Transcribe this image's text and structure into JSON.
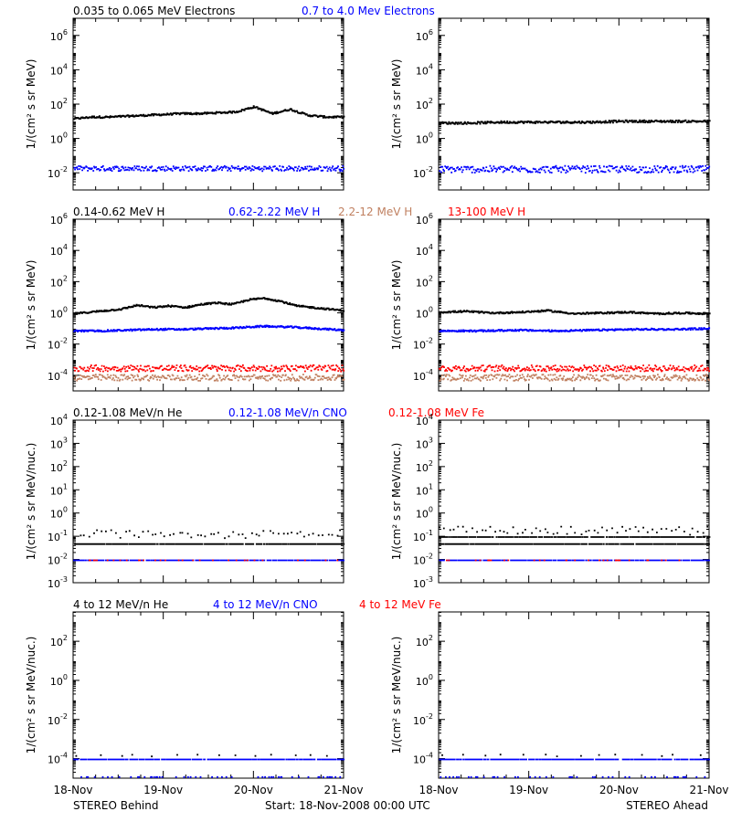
{
  "chart_data": {
    "type": "scatter",
    "x_ticks": [
      "18-Nov",
      "19-Nov",
      "20-Nov",
      "21-Nov"
    ],
    "xlim_days": [
      0,
      3
    ],
    "footer": {
      "left": "STEREO Behind",
      "center": "Start: 18-Nov-2008 00:00 UTC",
      "right": "STEREO Ahead"
    },
    "rows": [
      {
        "ylabel": "1/(cm² s sr MeV)",
        "ylim_exp": [
          -3,
          7
        ],
        "y_ticks": [
          {
            "exp": -2,
            "label": "10",
            "sup": "-2"
          },
          {
            "exp": 0,
            "label": "10",
            "sup": "0"
          },
          {
            "exp": 2,
            "label": "10",
            "sup": "2"
          },
          {
            "exp": 4,
            "label": "10",
            "sup": "4"
          },
          {
            "exp": 6,
            "label": "10",
            "sup": "6"
          }
        ],
        "legend": [
          {
            "text": "0.035 to 0.065 MeV Electrons",
            "color": "#000000"
          },
          {
            "text": "0.7 to 4.0 Mev Electrons",
            "color": "#0000ff"
          }
        ],
        "behind": [
          {
            "color": "#000000",
            "style": "line",
            "level": [
              1.2,
              1.3,
              1.3,
              1.35,
              1.4,
              1.45,
              1.5,
              1.5,
              1.55,
              1.6,
              1.9,
              1.5,
              1.75,
              1.4,
              1.3,
              1.3
            ],
            "jitter": 0.05
          },
          {
            "color": "#0000ff",
            "style": "scatter",
            "level": [
              -1.7,
              -1.7,
              -1.7,
              -1.7,
              -1.7,
              -1.7,
              -1.7,
              -1.7
            ],
            "jitter": 0.15
          }
        ],
        "ahead": [
          {
            "color": "#000000",
            "style": "line",
            "level": [
              0.95,
              0.95,
              1.0,
              1.0,
              1.0,
              1.0,
              1.05,
              1.05,
              1.05,
              1.05
            ],
            "jitter": 0.06
          },
          {
            "color": "#0000ff",
            "style": "scatter",
            "level": [
              -1.75,
              -1.75,
              -1.75,
              -1.75,
              -1.75,
              -1.75,
              -1.75
            ],
            "jitter": 0.2
          }
        ]
      },
      {
        "ylabel": "1/(cm² s sr MeV)",
        "ylim_exp": [
          -5,
          6
        ],
        "y_ticks": [
          {
            "exp": -4,
            "label": "10",
            "sup": "-4"
          },
          {
            "exp": -2,
            "label": "10",
            "sup": "-2"
          },
          {
            "exp": 0,
            "label": "10",
            "sup": "0"
          },
          {
            "exp": 2,
            "label": "10",
            "sup": "2"
          },
          {
            "exp": 4,
            "label": "10",
            "sup": "4"
          },
          {
            "exp": 6,
            "label": "10",
            "sup": "6"
          }
        ],
        "legend": [
          {
            "text": "0.14-0.62 MeV H",
            "color": "#000000"
          },
          {
            "text": "0.62-2.22 MeV H",
            "color": "#0000ff"
          },
          {
            "text": "2.2-12 MeV H",
            "color": "#c08060"
          },
          {
            "text": "13-100 MeV H",
            "color": "#ff0000"
          }
        ],
        "behind": [
          {
            "color": "#000000",
            "style": "line",
            "level": [
              0.0,
              0.1,
              0.2,
              0.3,
              0.55,
              0.4,
              0.5,
              0.4,
              0.6,
              0.7,
              0.6,
              0.9,
              1.0,
              0.8,
              0.5,
              0.4,
              0.3,
              0.2
            ],
            "jitter": 0.05
          },
          {
            "color": "#0000ff",
            "style": "line",
            "level": [
              -1.1,
              -1.1,
              -1.05,
              -1.0,
              -1.0,
              -0.95,
              -0.9,
              -0.8,
              -0.85,
              -0.95,
              -1.05
            ],
            "jitter": 0.05
          },
          {
            "color": "#c08060",
            "style": "scatter",
            "level": [
              -4.1,
              -4.1,
              -4.1,
              -4.1,
              -4.1
            ],
            "jitter": 0.2
          },
          {
            "color": "#ff0000",
            "style": "scatter",
            "level": [
              -3.5,
              -3.5,
              -3.5,
              -3.5,
              -3.5
            ],
            "jitter": 0.2
          }
        ],
        "ahead": [
          {
            "color": "#000000",
            "style": "line",
            "level": [
              0.1,
              0.15,
              0.05,
              0.1,
              0.2,
              0.0,
              0.05,
              0.1,
              0.0,
              0.05,
              0.0
            ],
            "jitter": 0.05
          },
          {
            "color": "#0000ff",
            "style": "line",
            "level": [
              -1.1,
              -1.1,
              -1.05,
              -1.1,
              -1.05,
              -1.0,
              -1.0,
              -0.95
            ],
            "jitter": 0.05
          },
          {
            "color": "#c08060",
            "style": "scatter",
            "level": [
              -4.1,
              -4.1,
              -4.1,
              -4.1
            ],
            "jitter": 0.2
          },
          {
            "color": "#ff0000",
            "style": "scatter",
            "level": [
              -3.5,
              -3.5,
              -3.5,
              -3.5
            ],
            "jitter": 0.2
          }
        ]
      },
      {
        "ylabel": "1/(cm² s sr MeV/nuc.)",
        "ylim_exp": [
          -3,
          4
        ],
        "y_ticks": [
          {
            "exp": -3,
            "label": "10",
            "sup": "-3"
          },
          {
            "exp": -2,
            "label": "10",
            "sup": "-2"
          },
          {
            "exp": -1,
            "label": "10",
            "sup": "-1"
          },
          {
            "exp": 0,
            "label": "10",
            "sup": "0"
          },
          {
            "exp": 1,
            "label": "10",
            "sup": "1"
          },
          {
            "exp": 2,
            "label": "10",
            "sup": "2"
          },
          {
            "exp": 3,
            "label": "10",
            "sup": "3"
          },
          {
            "exp": 4,
            "label": "10",
            "sup": "4"
          }
        ],
        "legend": [
          {
            "text": "0.12-1.08 MeV/n He",
            "color": "#000000"
          },
          {
            "text": "0.12-1.08 MeV/n CNO",
            "color": "#0000ff"
          },
          {
            "text": "0.12-1.08 MeV Fe",
            "color": "#ff0000"
          }
        ],
        "behind": [
          {
            "color": "#000000",
            "style": "dash",
            "level": [
              -1.3,
              -1.3
            ],
            "jitter": 0
          },
          {
            "color": "#000000",
            "style": "sparse",
            "level": [
              -0.95,
              -0.95,
              -0.95,
              -0.95
            ],
            "jitter": 0.1
          },
          {
            "color": "#0000ff",
            "style": "dash",
            "level": [
              -2.0,
              -2.0
            ],
            "jitter": 0
          },
          {
            "color": "#ff0000",
            "style": "sparsered",
            "level": [
              -2.0,
              -2.0
            ],
            "jitter": 0
          }
        ],
        "ahead": [
          {
            "color": "#000000",
            "style": "dash",
            "level": [
              -1.3,
              -1.3
            ],
            "jitter": 0
          },
          {
            "color": "#000000",
            "style": "dash",
            "level": [
              -1.0,
              -1.0
            ],
            "jitter": 0
          },
          {
            "color": "#000000",
            "style": "sparse",
            "level": [
              -0.8,
              -0.8,
              -0.8,
              -0.8
            ],
            "jitter": 0.1
          },
          {
            "color": "#0000ff",
            "style": "dash",
            "level": [
              -2.0,
              -2.0
            ],
            "jitter": 0
          },
          {
            "color": "#ff0000",
            "style": "sparsered",
            "level": [
              -2.0,
              -2.0
            ],
            "jitter": 0
          }
        ]
      },
      {
        "ylabel": "1/(cm² s sr MeV/nuc.)",
        "ylim_exp": [
          -5,
          3.5
        ],
        "y_ticks": [
          {
            "exp": -4,
            "label": "10",
            "sup": "-4"
          },
          {
            "exp": -2,
            "label": "10",
            "sup": "-2"
          },
          {
            "exp": 0,
            "label": "10",
            "sup": "0"
          },
          {
            "exp": 2,
            "label": "10",
            "sup": "2"
          }
        ],
        "legend": [
          {
            "text": "4 to 12 MeV/n He",
            "color": "#000000"
          },
          {
            "text": "4 to 12 MeV/n CNO",
            "color": "#0000ff"
          },
          {
            "text": "4 to 12 MeV Fe",
            "color": "#ff0000"
          }
        ],
        "behind": [
          {
            "color": "#0000ff",
            "style": "dash",
            "level": [
              -4.0,
              -4.0
            ],
            "jitter": 0
          },
          {
            "color": "#000000",
            "style": "few",
            "level": [
              -3.8,
              -3.8
            ],
            "jitter": 0.05
          },
          {
            "color": "#0000ff",
            "style": "bottom",
            "level": [
              -4.9,
              -4.9
            ],
            "jitter": 0
          }
        ],
        "ahead": [
          {
            "color": "#0000ff",
            "style": "dash",
            "level": [
              -4.0,
              -4.0
            ],
            "jitter": 0
          },
          {
            "color": "#000000",
            "style": "few",
            "level": [
              -3.8,
              -3.8
            ],
            "jitter": 0.05
          },
          {
            "color": "#0000ff",
            "style": "bottom",
            "level": [
              -4.9,
              -4.9
            ],
            "jitter": 0
          }
        ]
      }
    ]
  }
}
